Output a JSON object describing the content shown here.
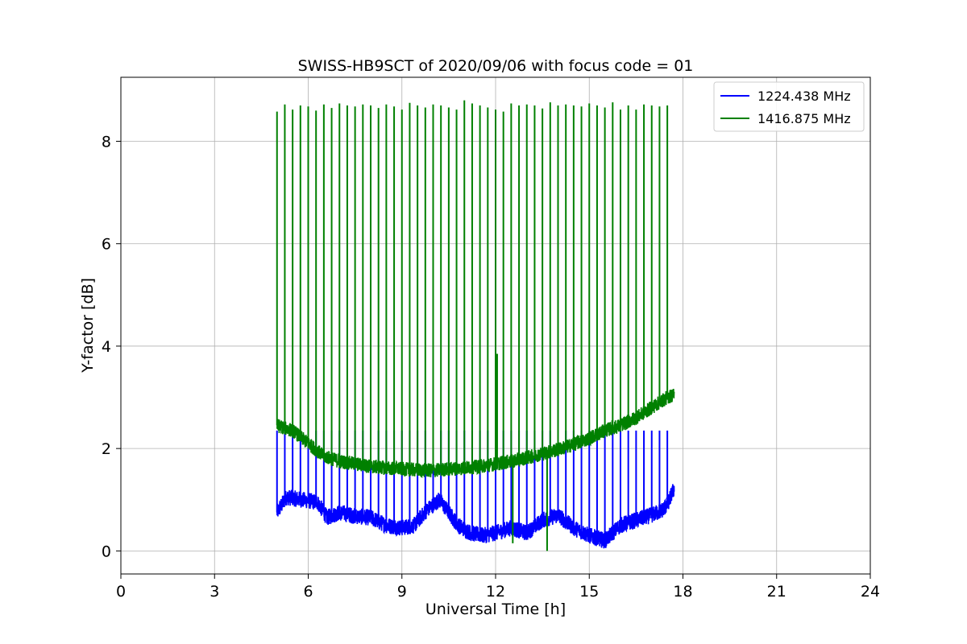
{
  "chart_data": {
    "type": "line",
    "title": "SWISS-HB9SCT of 2020/09/06 with focus code = 01",
    "xlabel": "Universal Time [h]",
    "ylabel": "Y-factor [dB]",
    "xlim": [
      0,
      24
    ],
    "ylim": [
      -0.45,
      9.25
    ],
    "xticks": [
      0,
      3,
      6,
      9,
      12,
      15,
      18,
      21,
      24
    ],
    "xtick_labels": [
      "0",
      "3",
      "6",
      "9",
      "12",
      "15",
      "18",
      "21",
      "24"
    ],
    "yticks": [
      0,
      2,
      4,
      6,
      8
    ],
    "ytick_labels": [
      "0",
      "2",
      "4",
      "6",
      "8"
    ],
    "grid": true,
    "legend_position": "top-right",
    "series": [
      {
        "name": "1224.438 MHz",
        "color": "#0000ff",
        "baseline": {
          "x": [
            5.0,
            5.3,
            5.8,
            6.3,
            6.6,
            7.0,
            7.5,
            8.0,
            8.5,
            9.0,
            9.4,
            9.8,
            10.2,
            10.5,
            10.8,
            11.2,
            11.6,
            12.0,
            12.5,
            13.0,
            13.5,
            14.0,
            14.5,
            15.0,
            15.5,
            16.0,
            16.5,
            17.0,
            17.3,
            17.5,
            17.7
          ],
          "y": [
            0.75,
            1.05,
            1.0,
            0.95,
            0.65,
            0.75,
            0.68,
            0.65,
            0.5,
            0.45,
            0.5,
            0.8,
            1.0,
            0.75,
            0.5,
            0.35,
            0.3,
            0.35,
            0.45,
            0.35,
            0.6,
            0.7,
            0.45,
            0.3,
            0.2,
            0.5,
            0.6,
            0.7,
            0.78,
            0.9,
            1.2
          ]
        },
        "spike_peak": 2.35
      },
      {
        "name": "1416.875 MHz",
        "color": "#008000",
        "baseline": {
          "x": [
            5.0,
            5.5,
            6.0,
            6.5,
            7.0,
            7.5,
            8.0,
            8.5,
            9.0,
            9.5,
            10.0,
            10.5,
            11.0,
            11.5,
            12.0,
            12.5,
            13.0,
            13.5,
            14.0,
            14.5,
            15.0,
            15.5,
            16.0,
            16.5,
            17.0,
            17.5,
            17.7
          ],
          "y": [
            2.45,
            2.35,
            2.1,
            1.85,
            1.75,
            1.7,
            1.65,
            1.62,
            1.6,
            1.58,
            1.57,
            1.6,
            1.62,
            1.65,
            1.7,
            1.75,
            1.82,
            1.9,
            1.98,
            2.08,
            2.2,
            2.35,
            2.45,
            2.6,
            2.8,
            3.0,
            3.05
          ]
        },
        "spike_peak": 8.65
      }
    ],
    "spike_times": [
      5.0,
      5.25,
      5.5,
      5.75,
      6.0,
      6.25,
      6.5,
      6.75,
      7.0,
      7.25,
      7.5,
      7.75,
      8.0,
      8.25,
      8.5,
      8.75,
      9.0,
      9.25,
      9.5,
      9.75,
      10.0,
      10.25,
      10.5,
      10.75,
      11.0,
      11.25,
      11.5,
      11.75,
      12.0,
      12.25,
      12.5,
      12.75,
      13.0,
      13.25,
      13.5,
      13.75,
      14.0,
      14.25,
      14.5,
      14.75,
      15.0,
      15.25,
      15.5,
      15.75,
      16.0,
      16.25,
      16.5,
      16.75,
      17.0,
      17.25,
      17.5
    ],
    "green_spike_peaks": [
      8.58,
      8.72,
      8.62,
      8.7,
      8.68,
      8.6,
      8.72,
      8.65,
      8.74,
      8.7,
      8.68,
      8.72,
      8.7,
      8.65,
      8.72,
      8.68,
      8.62,
      8.75,
      8.7,
      8.66,
      8.72,
      8.7,
      8.66,
      8.62,
      8.8,
      8.74,
      8.7,
      8.66,
      8.62,
      8.58,
      8.74,
      8.7,
      8.72,
      8.7,
      8.64,
      8.76,
      8.7,
      8.72,
      8.7,
      8.68,
      8.74,
      8.7,
      8.66,
      8.76,
      8.62,
      8.7,
      8.62,
      8.72,
      8.7,
      8.68,
      8.7
    ],
    "green_dips": [
      {
        "x": 12.05,
        "y": 3.85
      },
      {
        "x": 12.55,
        "y": 0.15
      },
      {
        "x": 13.65,
        "y": 0.0
      }
    ]
  }
}
